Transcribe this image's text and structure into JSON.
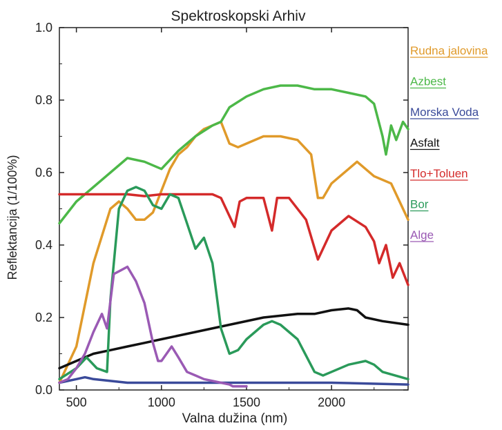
{
  "chart_data": {
    "type": "line",
    "title": "Spektroskopski Arhiv",
    "xlabel": "Valna dužina (nm)",
    "ylabel": "Reflektancija (1/100%)",
    "xlim": [
      400,
      2450
    ],
    "ylim": [
      0,
      1.0
    ],
    "xticks": [
      500,
      1000,
      1500,
      2000
    ],
    "yticks": [
      0.0,
      0.2,
      0.4,
      0.6,
      0.8,
      1.0
    ],
    "ytick_labels": [
      "0.0",
      "0.2",
      "0.4",
      "0.6",
      "0.8",
      "1.0"
    ],
    "grid": false,
    "legend_placement": "right",
    "series": [
      {
        "name": "Rudna jalovina",
        "color": "#e09a2a",
        "points": [
          [
            400,
            0.02
          ],
          [
            500,
            0.12
          ],
          [
            600,
            0.35
          ],
          [
            700,
            0.5
          ],
          [
            750,
            0.52
          ],
          [
            800,
            0.5
          ],
          [
            850,
            0.47
          ],
          [
            900,
            0.47
          ],
          [
            950,
            0.49
          ],
          [
            1000,
            0.55
          ],
          [
            1050,
            0.61
          ],
          [
            1100,
            0.65
          ],
          [
            1150,
            0.67
          ],
          [
            1200,
            0.7
          ],
          [
            1250,
            0.72
          ],
          [
            1300,
            0.73
          ],
          [
            1350,
            0.74
          ],
          [
            1400,
            0.68
          ],
          [
            1450,
            0.67
          ],
          [
            1500,
            0.68
          ],
          [
            1600,
            0.7
          ],
          [
            1700,
            0.7
          ],
          [
            1800,
            0.69
          ],
          [
            1880,
            0.65
          ],
          [
            1920,
            0.53
          ],
          [
            1950,
            0.53
          ],
          [
            2000,
            0.57
          ],
          [
            2100,
            0.61
          ],
          [
            2150,
            0.63
          ],
          [
            2200,
            0.61
          ],
          [
            2250,
            0.59
          ],
          [
            2350,
            0.57
          ],
          [
            2450,
            0.47
          ]
        ]
      },
      {
        "name": "Azbest",
        "color": "#4cb848",
        "points": [
          [
            400,
            0.46
          ],
          [
            500,
            0.52
          ],
          [
            600,
            0.56
          ],
          [
            700,
            0.6
          ],
          [
            800,
            0.64
          ],
          [
            900,
            0.63
          ],
          [
            1000,
            0.61
          ],
          [
            1100,
            0.66
          ],
          [
            1200,
            0.7
          ],
          [
            1300,
            0.73
          ],
          [
            1350,
            0.74
          ],
          [
            1400,
            0.78
          ],
          [
            1500,
            0.81
          ],
          [
            1600,
            0.83
          ],
          [
            1700,
            0.84
          ],
          [
            1800,
            0.84
          ],
          [
            1900,
            0.83
          ],
          [
            2000,
            0.83
          ],
          [
            2100,
            0.82
          ],
          [
            2200,
            0.81
          ],
          [
            2250,
            0.79
          ],
          [
            2300,
            0.7
          ],
          [
            2320,
            0.65
          ],
          [
            2350,
            0.73
          ],
          [
            2380,
            0.69
          ],
          [
            2420,
            0.74
          ],
          [
            2450,
            0.72
          ]
        ]
      },
      {
        "name": "Morska Voda",
        "color": "#3a4a9a",
        "points": [
          [
            400,
            0.02
          ],
          [
            500,
            0.03
          ],
          [
            550,
            0.035
          ],
          [
            600,
            0.03
          ],
          [
            700,
            0.025
          ],
          [
            800,
            0.02
          ],
          [
            1000,
            0.02
          ],
          [
            1500,
            0.02
          ],
          [
            2000,
            0.02
          ],
          [
            2450,
            0.015
          ]
        ]
      },
      {
        "name": "Asfalt",
        "color": "#111111",
        "points": [
          [
            400,
            0.06
          ],
          [
            500,
            0.08
          ],
          [
            600,
            0.1
          ],
          [
            700,
            0.11
          ],
          [
            800,
            0.12
          ],
          [
            900,
            0.13
          ],
          [
            1000,
            0.14
          ],
          [
            1200,
            0.16
          ],
          [
            1400,
            0.18
          ],
          [
            1600,
            0.2
          ],
          [
            1800,
            0.21
          ],
          [
            1900,
            0.21
          ],
          [
            2000,
            0.22
          ],
          [
            2100,
            0.225
          ],
          [
            2150,
            0.22
          ],
          [
            2200,
            0.2
          ],
          [
            2300,
            0.19
          ],
          [
            2450,
            0.18
          ]
        ]
      },
      {
        "name": "Tlo+Toluen",
        "color": "#d42a2a",
        "points": [
          [
            400,
            0.54
          ],
          [
            500,
            0.54
          ],
          [
            600,
            0.54
          ],
          [
            700,
            0.54
          ],
          [
            800,
            0.54
          ],
          [
            900,
            0.535
          ],
          [
            1000,
            0.54
          ],
          [
            1100,
            0.54
          ],
          [
            1200,
            0.54
          ],
          [
            1300,
            0.54
          ],
          [
            1350,
            0.53
          ],
          [
            1400,
            0.48
          ],
          [
            1430,
            0.45
          ],
          [
            1460,
            0.52
          ],
          [
            1500,
            0.53
          ],
          [
            1550,
            0.53
          ],
          [
            1600,
            0.53
          ],
          [
            1650,
            0.44
          ],
          [
            1680,
            0.53
          ],
          [
            1750,
            0.53
          ],
          [
            1850,
            0.47
          ],
          [
            1920,
            0.36
          ],
          [
            1950,
            0.39
          ],
          [
            2000,
            0.44
          ],
          [
            2100,
            0.48
          ],
          [
            2200,
            0.45
          ],
          [
            2250,
            0.41
          ],
          [
            2280,
            0.35
          ],
          [
            2320,
            0.4
          ],
          [
            2360,
            0.31
          ],
          [
            2400,
            0.35
          ],
          [
            2450,
            0.29
          ]
        ]
      },
      {
        "name": "Bor",
        "color": "#2a9a5a",
        "points": [
          [
            400,
            0.03
          ],
          [
            500,
            0.06
          ],
          [
            560,
            0.09
          ],
          [
            620,
            0.06
          ],
          [
            680,
            0.05
          ],
          [
            700,
            0.25
          ],
          [
            750,
            0.5
          ],
          [
            800,
            0.55
          ],
          [
            850,
            0.56
          ],
          [
            900,
            0.55
          ],
          [
            950,
            0.51
          ],
          [
            1000,
            0.5
          ],
          [
            1050,
            0.54
          ],
          [
            1100,
            0.53
          ],
          [
            1150,
            0.46
          ],
          [
            1200,
            0.39
          ],
          [
            1250,
            0.42
          ],
          [
            1300,
            0.35
          ],
          [
            1350,
            0.17
          ],
          [
            1400,
            0.1
          ],
          [
            1450,
            0.11
          ],
          [
            1500,
            0.14
          ],
          [
            1600,
            0.18
          ],
          [
            1650,
            0.19
          ],
          [
            1700,
            0.18
          ],
          [
            1800,
            0.14
          ],
          [
            1900,
            0.05
          ],
          [
            1950,
            0.04
          ],
          [
            2000,
            0.05
          ],
          [
            2100,
            0.07
          ],
          [
            2200,
            0.08
          ],
          [
            2250,
            0.07
          ],
          [
            2300,
            0.05
          ],
          [
            2450,
            0.03
          ]
        ]
      },
      {
        "name": "Alge",
        "color": "#9a5ab4",
        "points": [
          [
            400,
            0.02
          ],
          [
            450,
            0.03
          ],
          [
            500,
            0.06
          ],
          [
            550,
            0.1
          ],
          [
            600,
            0.16
          ],
          [
            650,
            0.21
          ],
          [
            680,
            0.17
          ],
          [
            720,
            0.32
          ],
          [
            760,
            0.33
          ],
          [
            800,
            0.34
          ],
          [
            850,
            0.3
          ],
          [
            900,
            0.24
          ],
          [
            950,
            0.13
          ],
          [
            980,
            0.08
          ],
          [
            1000,
            0.08
          ],
          [
            1030,
            0.1
          ],
          [
            1060,
            0.12
          ],
          [
            1100,
            0.09
          ],
          [
            1150,
            0.05
          ],
          [
            1200,
            0.04
          ],
          [
            1250,
            0.03
          ],
          [
            1350,
            0.02
          ],
          [
            1400,
            0.015
          ],
          [
            1420,
            0.01
          ],
          [
            1500,
            0.01
          ]
        ]
      }
    ]
  }
}
